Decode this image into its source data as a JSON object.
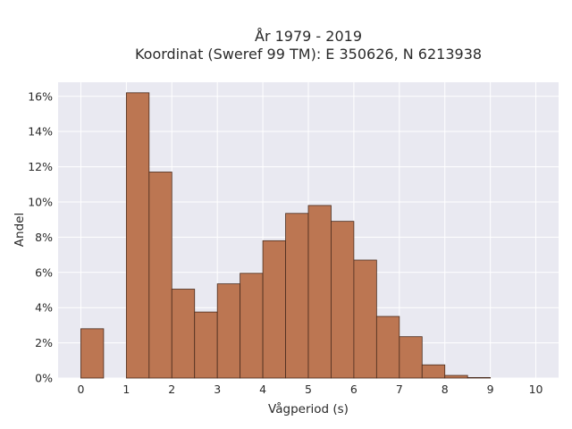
{
  "chart_data": {
    "type": "bar",
    "title_line1": "År 1979 - 2019",
    "title_line2": "Koordinat (Sweref 99 TM): E 350626, N 6213938",
    "xlabel": "Vågperiod (s)",
    "ylabel": "Andel",
    "xlim": [
      -0.5,
      10.5
    ],
    "ylim": [
      0,
      16.8
    ],
    "x_ticks": [
      0,
      1,
      2,
      3,
      4,
      5,
      6,
      7,
      8,
      9,
      10
    ],
    "y_ticks": [
      0,
      2,
      4,
      6,
      8,
      10,
      12,
      14,
      16
    ],
    "y_tick_format": "percent",
    "bin_width": 0.5,
    "bins": [
      {
        "start": 0.0,
        "value": 2.8
      },
      {
        "start": 0.5,
        "value": 0.0
      },
      {
        "start": 1.0,
        "value": 16.2
      },
      {
        "start": 1.5,
        "value": 11.7
      },
      {
        "start": 2.0,
        "value": 5.05
      },
      {
        "start": 2.5,
        "value": 3.75
      },
      {
        "start": 3.0,
        "value": 5.35
      },
      {
        "start": 3.5,
        "value": 5.95
      },
      {
        "start": 4.0,
        "value": 7.8
      },
      {
        "start": 4.5,
        "value": 9.35
      },
      {
        "start": 5.0,
        "value": 9.8
      },
      {
        "start": 5.5,
        "value": 8.9
      },
      {
        "start": 6.0,
        "value": 6.7
      },
      {
        "start": 6.5,
        "value": 3.5
      },
      {
        "start": 7.0,
        "value": 2.35
      },
      {
        "start": 7.5,
        "value": 0.75
      },
      {
        "start": 8.0,
        "value": 0.15
      },
      {
        "start": 8.5,
        "value": 0.03
      }
    ],
    "grid": true,
    "colors": {
      "bar_fill": "#bc7652",
      "bar_edge": "#4a2c1e",
      "plot_background": "#e9e9f1",
      "grid": "#ffffff"
    }
  }
}
